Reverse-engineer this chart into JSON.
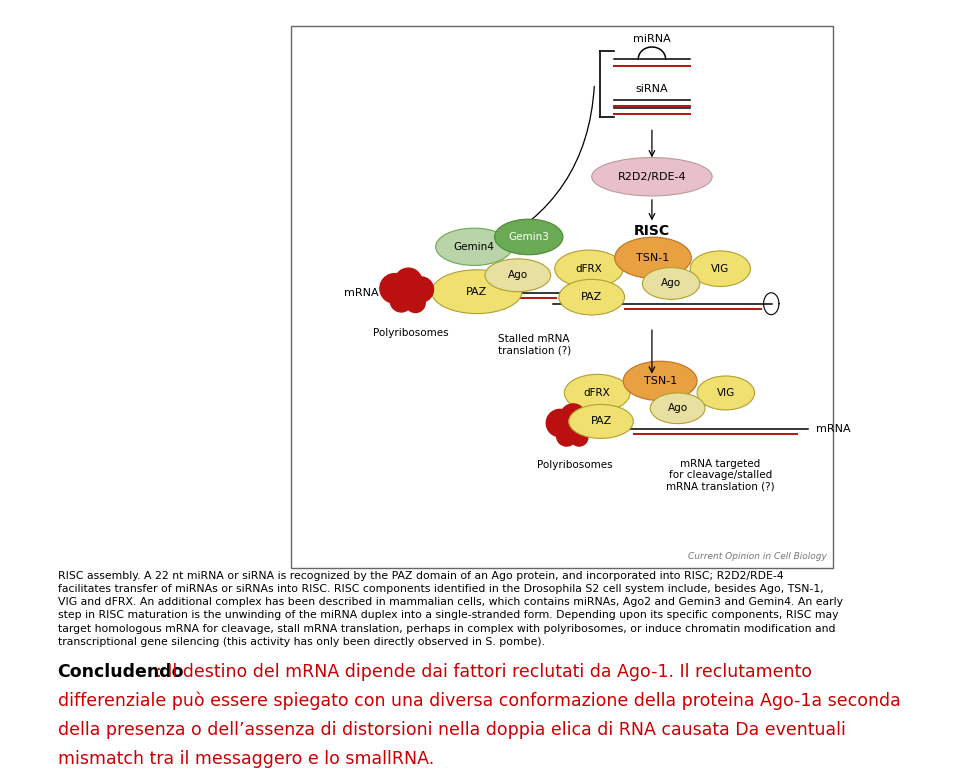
{
  "figure_width": 9.6,
  "figure_height": 7.82,
  "dpi": 100,
  "bg_color": "#ffffff",
  "caption_text": "RISC assembly. A 22 nt miRNA or siRNA is recognized by the PAZ domain of an Ago protein, and incorporated into RISC; R2D2/RDE-4\nfacilitates transfer of miRNAs or siRNAs into RISC. RISC components identified in the Drosophila S2 cell system include, besides Ago, TSN-1,\nVIG and dFRX. An additional complex has been described in mammalian cells, which contains miRNAs, Ago2 and Gemin3 and Gemin4. An early\nstep in RISC maturation is the unwinding of the miRNA duplex into a single-stranded form. Depending upon its specific components, RISC may\ntarget homologous mRNA for cleavage, stall mRNA translation, perhaps in complex with polyribosomes, or induce chromatin modification and\ntranscriptional gene silencing (this activity has only been directly observed in S. pombe).",
  "concludendo_label": "Concludendo",
  "concludendo_text": ": Il destino del mRNA dipende dai fattori reclutati da Ago-1. Il reclutamento differenziale può essere spiegato con una diversa conformazione della proteina Ago-1a seconda della presenza o dell’assenza di distorsioni nella doppia elica di RNA causata Da eventuali mismatch tra il messaggero e lo smallRNA.",
  "caption_fontsize": 7.8,
  "concludendo_fontsize": 12.5,
  "colors": {
    "green_light": "#b8d4a8",
    "green_dark": "#6aaa54",
    "yellow_light": "#f0e070",
    "yellow_pale": "#e8e0a0",
    "orange": "#e8a040",
    "pink": "#e8c0cc",
    "red_dark": "#bb1010",
    "text_red": "#cc0000"
  }
}
